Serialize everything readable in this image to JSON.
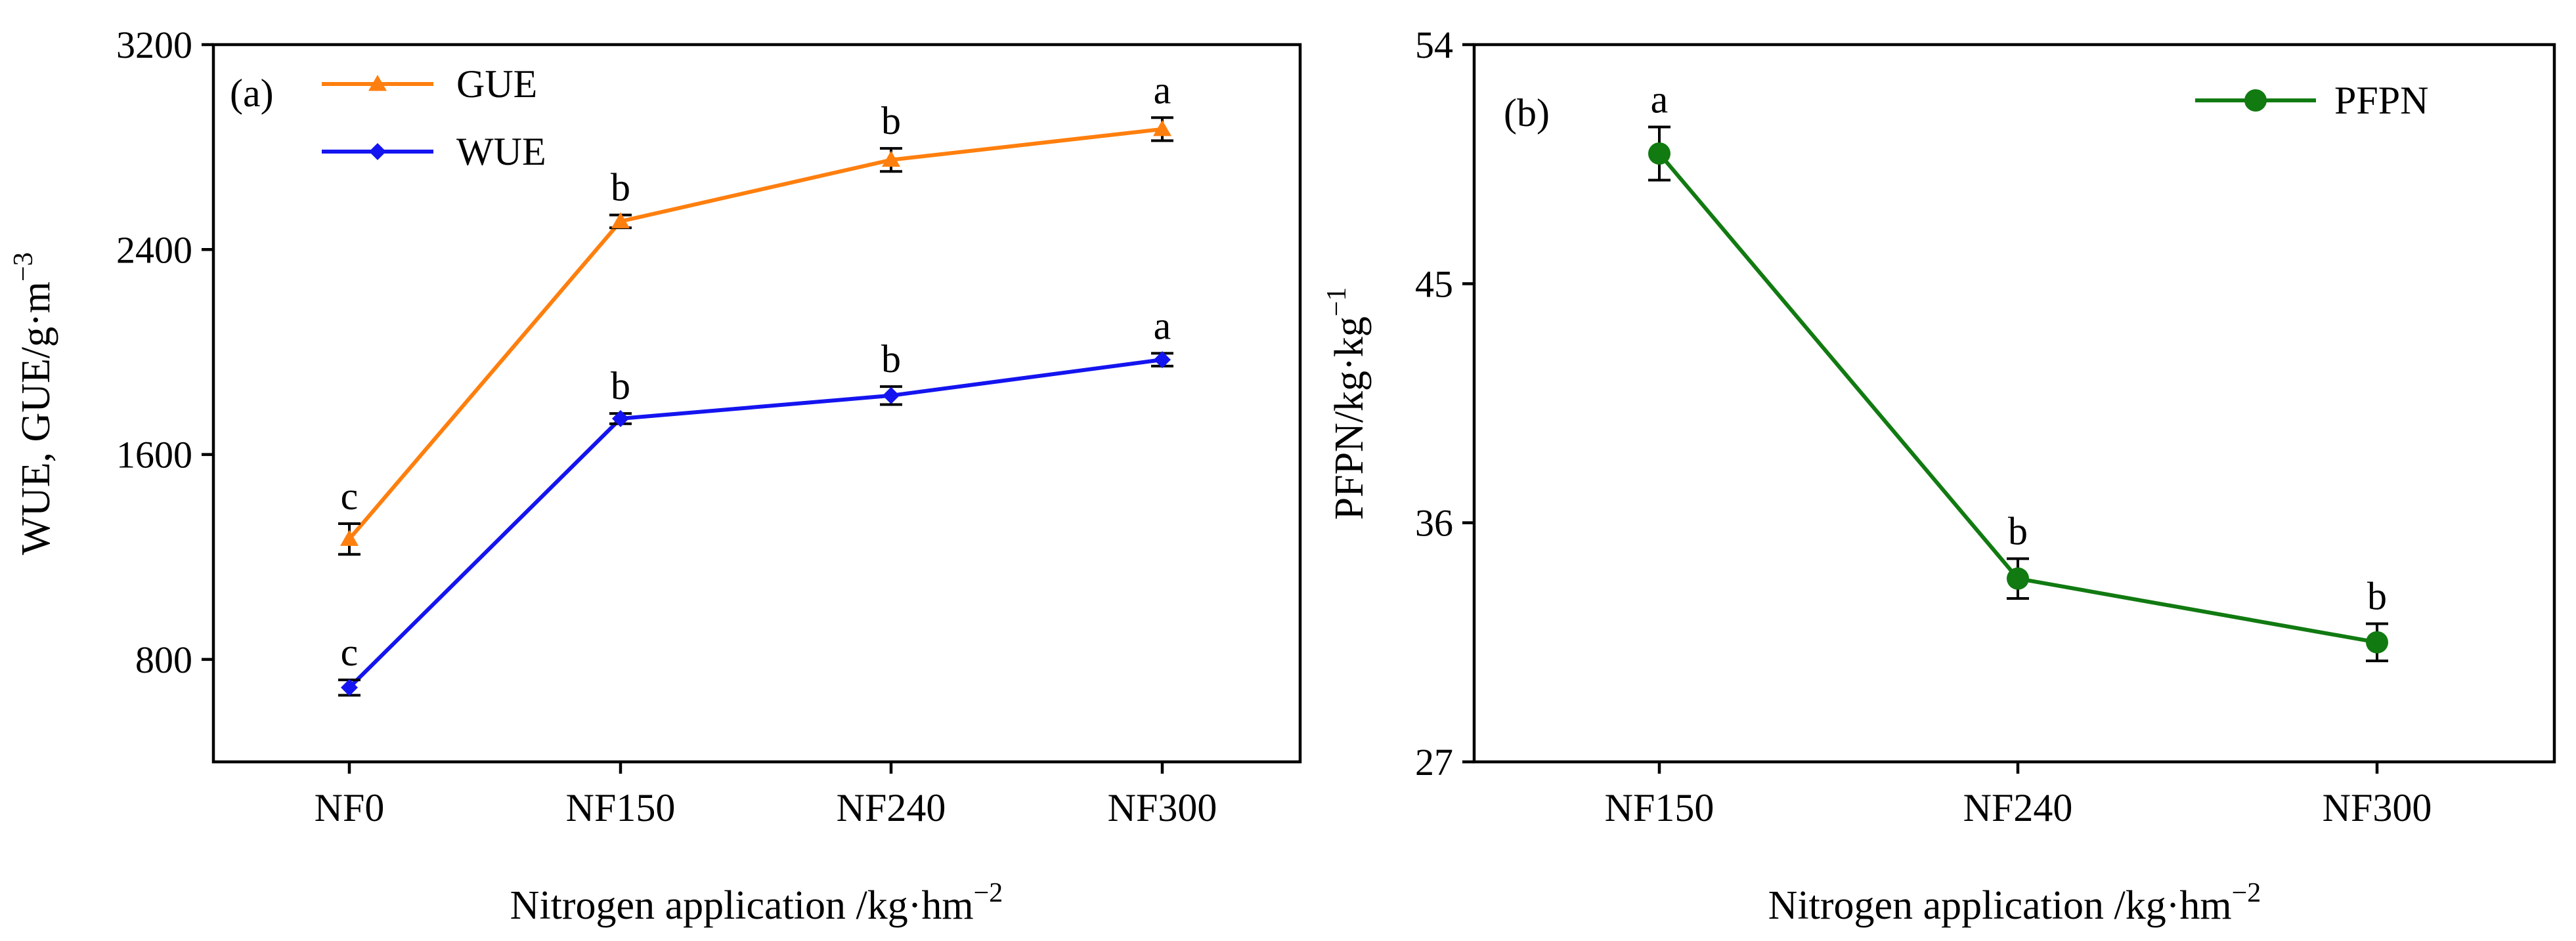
{
  "chart_data": [
    {
      "type": "line",
      "panel_label": "(a)",
      "categories": [
        "NF0",
        "NF150",
        "NF240",
        "NF300"
      ],
      "xlabel_main": "Nitrogen application /kg·hm",
      "xlabel_sup": "−2",
      "ylabel_main": "WUE, GUE/g·m",
      "ylabel_sup": "−3",
      "ylim": [
        400,
        3200
      ],
      "yticks": [
        800,
        1600,
        2400,
        3200
      ],
      "yticks_label": [
        "800",
        "1600",
        "2400",
        "3200"
      ],
      "legend_position": "top-left",
      "series": [
        {
          "name": "GUE",
          "color": "#ff7f0e",
          "marker": "triangle",
          "values": [
            1270,
            2510,
            2750,
            2870
          ],
          "errors": [
            60,
            25,
            45,
            45
          ],
          "letters": [
            "c",
            "b",
            "b",
            "a"
          ]
        },
        {
          "name": "WUE",
          "color": "#1414f0",
          "marker": "diamond",
          "values": [
            690,
            1740,
            1830,
            1970
          ],
          "errors": [
            30,
            20,
            35,
            25
          ],
          "letters": [
            "c",
            "b",
            "b",
            "a"
          ]
        }
      ]
    },
    {
      "type": "line",
      "panel_label": "(b)",
      "categories": [
        "NF150",
        "NF240",
        "NF300"
      ],
      "xlabel_main": "Nitrogen application /kg·hm",
      "xlabel_sup": "−2",
      "ylabel_main": "PFPN/kg·kg",
      "ylabel_sup": "−1",
      "ylim": [
        27,
        54
      ],
      "yticks": [
        27,
        36,
        45,
        54
      ],
      "yticks_label": [
        "27",
        "36",
        "45",
        "54"
      ],
      "legend_position": "top-right",
      "series": [
        {
          "name": "PFPN",
          "color": "#117a11",
          "marker": "circle",
          "values": [
            49.9,
            33.9,
            31.5
          ],
          "errors": [
            1.0,
            0.75,
            0.7
          ],
          "letters": [
            "a",
            "b",
            "b"
          ]
        }
      ]
    }
  ]
}
